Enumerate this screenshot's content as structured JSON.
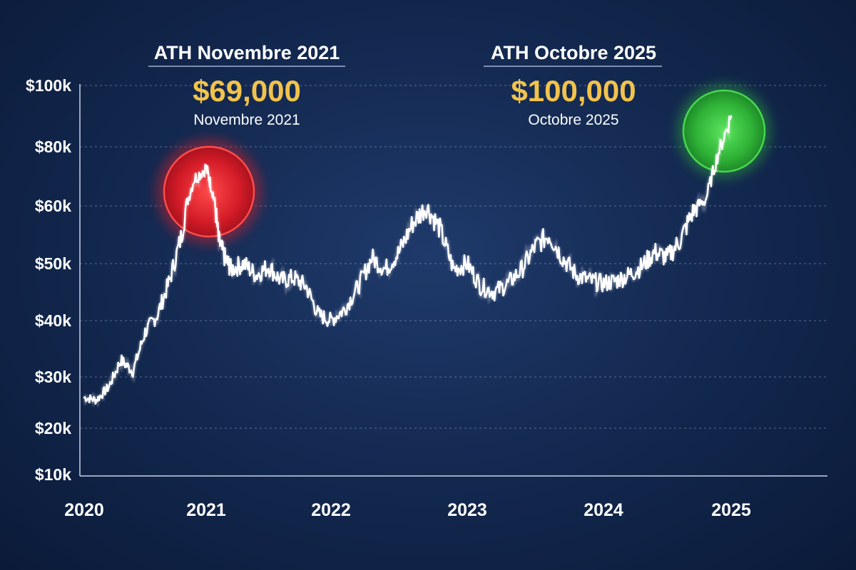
{
  "chart_data": {
    "type": "line",
    "title": "",
    "xlabel": "",
    "ylabel": "",
    "ylim": [
      10000,
      100000
    ],
    "xlim": [
      2020,
      2025.75
    ],
    "y_ticks": [
      "$10k",
      "$20k",
      "$30k",
      "$40k",
      "$50k",
      "$60k",
      "$80k",
      "$100k"
    ],
    "x_ticks": [
      "2020",
      "2021",
      "2022",
      "2023",
      "2024",
      "2025"
    ],
    "grid": true,
    "series": [
      {
        "color": "#ffffff",
        "x": [
          2020.0,
          2020.1,
          2020.2,
          2020.3,
          2020.4,
          2020.5,
          2020.6,
          2020.7,
          2020.8,
          2020.9,
          2021.0,
          2021.05,
          2021.1,
          2021.15,
          2021.2,
          2021.3,
          2021.4,
          2021.5,
          2021.6,
          2021.7,
          2021.8,
          2021.9,
          2022.0,
          2022.1,
          2022.2,
          2022.3,
          2022.4,
          2022.5,
          2022.6,
          2022.7,
          2022.8,
          2022.9,
          2023.0,
          2023.1,
          2023.2,
          2023.3,
          2023.4,
          2023.5,
          2023.6,
          2023.7,
          2023.8,
          2023.9,
          2024.0,
          2024.1,
          2024.2,
          2024.3,
          2024.4,
          2024.5,
          2024.6,
          2024.7,
          2024.8,
          2024.9,
          2025.0
        ],
        "values": [
          26000,
          25500,
          28000,
          33000,
          31000,
          38000,
          41000,
          47000,
          55000,
          69000,
          73000,
          65000,
          54000,
          51000,
          49000,
          50000,
          48000,
          49500,
          47000,
          47500,
          46000,
          41000,
          40000,
          42000,
          46000,
          51000,
          49000,
          52000,
          57000,
          60000,
          56000,
          49000,
          50000,
          46000,
          45000,
          46500,
          49000,
          53000,
          55000,
          51000,
          48000,
          47000,
          46500,
          47000,
          48000,
          49500,
          52000,
          51000,
          54000,
          59000,
          62000,
          78000,
          90000
        ]
      }
    ],
    "annotations": [
      {
        "heading": "ATH Novembre 2021",
        "price": "$69,000",
        "subtext": "Novembre 2021",
        "highlight_color": "#e0202a"
      },
      {
        "heading": "ATH Octobre 2025",
        "price": "$100,000",
        "subtext": "Octobre 2025",
        "highlight_color": "#33c23a"
      }
    ],
    "price_color": "#f2c34b",
    "grid_color": "#8fa3c8"
  }
}
